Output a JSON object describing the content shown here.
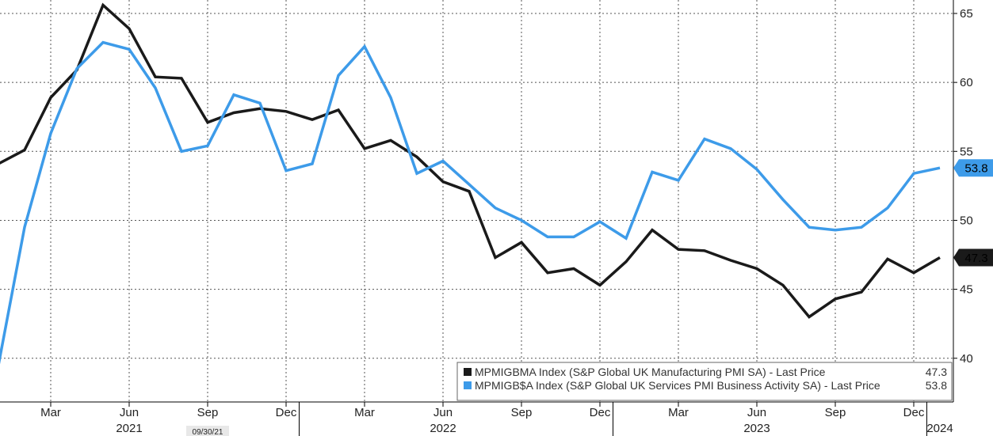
{
  "chart_data": {
    "type": "line",
    "x": [
      "2021-01",
      "2021-02",
      "2021-03",
      "2021-04",
      "2021-05",
      "2021-06",
      "2021-07",
      "2021-08",
      "2021-09",
      "2021-10",
      "2021-11",
      "2021-12",
      "2022-01",
      "2022-02",
      "2022-03",
      "2022-04",
      "2022-05",
      "2022-06",
      "2022-07",
      "2022-08",
      "2022-09",
      "2022-10",
      "2022-11",
      "2022-12",
      "2023-01",
      "2023-02",
      "2023-03",
      "2023-04",
      "2023-05",
      "2023-06",
      "2023-07",
      "2023-08",
      "2023-09",
      "2023-10",
      "2023-11",
      "2023-12",
      "2024-01"
    ],
    "series": [
      {
        "name": "MPMIGBMA Index (S&P Global UK Manufacturing PMI SA) - Last Price",
        "legend_value": "47.3",
        "last_label": "47.3",
        "color": "#1a1a1a",
        "values": [
          54.1,
          55.1,
          58.9,
          60.9,
          65.6,
          63.9,
          60.4,
          60.3,
          57.1,
          57.8,
          58.1,
          57.9,
          57.3,
          58.0,
          55.2,
          55.8,
          54.6,
          52.8,
          52.1,
          47.3,
          48.4,
          46.2,
          46.5,
          45.3,
          47.0,
          49.3,
          47.9,
          47.8,
          47.1,
          46.5,
          45.3,
          43.0,
          44.3,
          44.8,
          47.2,
          46.2,
          47.3
        ]
      },
      {
        "name": "MPMIGB$A Index (S&P Global UK Services PMI Business Activity SA) - Last Price",
        "legend_value": "53.8",
        "last_label": "53.8",
        "color": "#3d9be9",
        "values": [
          39.5,
          49.5,
          56.3,
          61.0,
          62.9,
          62.4,
          59.6,
          55.0,
          55.4,
          59.1,
          58.5,
          53.6,
          54.1,
          60.5,
          62.6,
          58.9,
          53.4,
          54.3,
          52.6,
          50.9,
          50.0,
          48.8,
          48.8,
          49.9,
          48.7,
          53.5,
          52.9,
          55.9,
          55.2,
          53.7,
          51.5,
          49.5,
          49.3,
          49.5,
          50.9,
          53.4,
          53.8
        ]
      }
    ],
    "ylim": [
      37,
      66
    ],
    "yticks": [
      40,
      45,
      50,
      55,
      60,
      65
    ],
    "x_tick_labels": [
      "Mar",
      "Jun",
      "Sep",
      "Dec",
      "Mar",
      "Jun",
      "Sep",
      "Dec",
      "Mar",
      "Jun",
      "Sep",
      "Dec"
    ],
    "x_tick_months": [
      "2021-03",
      "2021-06",
      "2021-09",
      "2021-12",
      "2022-03",
      "2022-06",
      "2022-09",
      "2022-12",
      "2023-03",
      "2023-06",
      "2023-09",
      "2023-12"
    ],
    "year_labels": [
      "2021",
      "2022",
      "2023",
      "2024"
    ],
    "year_label_months": [
      "2021-06",
      "2022-06",
      "2023-06",
      "2024-01"
    ],
    "year_boundaries": [
      "2022-01",
      "2023-01",
      "2024-01"
    ],
    "cursor_date": "09/30/21",
    "cursor_date_month": "2021-09",
    "grid": true,
    "y_axis_side": "right",
    "legend_position": "bottom-right"
  }
}
